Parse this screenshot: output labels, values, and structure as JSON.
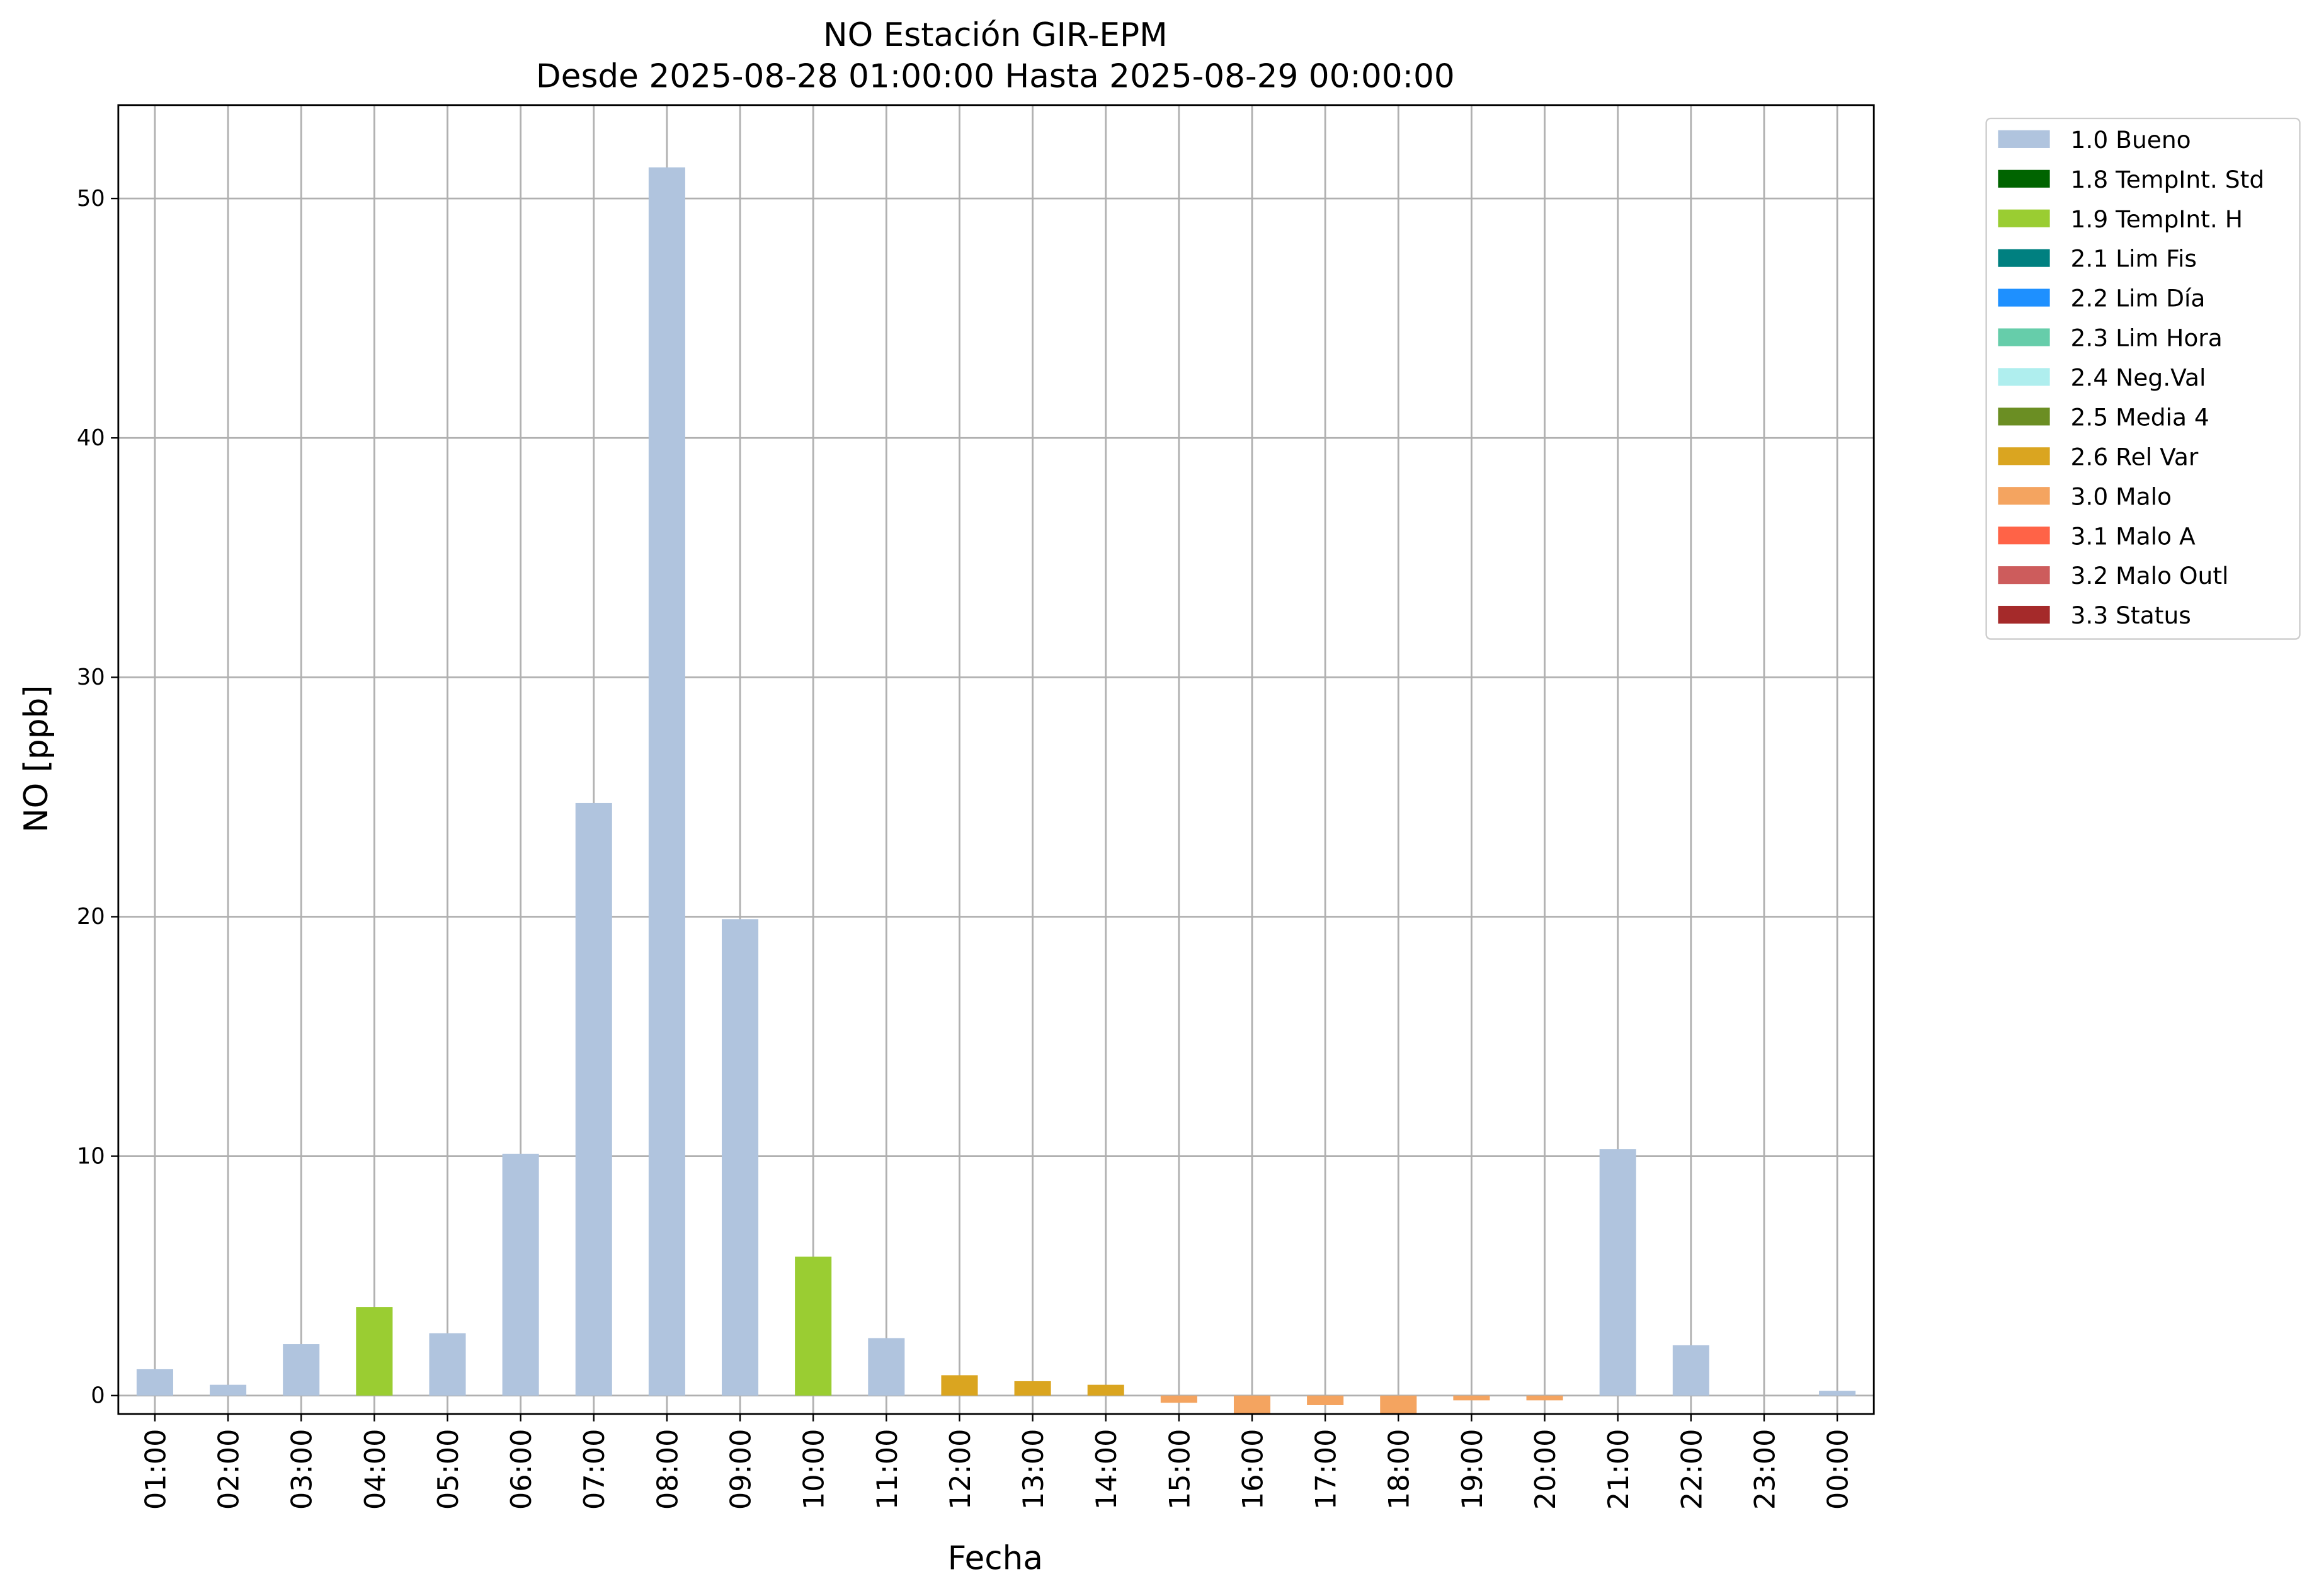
{
  "chart_data": {
    "type": "bar",
    "stacked": true,
    "title": "NO Estación GIR-EPM",
    "subtitle": "Desde 2025-08-28 01:00:00 Hasta 2025-08-29 00:00:00",
    "x_label": "Fecha",
    "y_label": "NO [ppb]",
    "categories": [
      "01:00",
      "02:00",
      "03:00",
      "04:00",
      "05:00",
      "06:00",
      "07:00",
      "08:00",
      "09:00",
      "10:00",
      "11:00",
      "12:00",
      "13:00",
      "14:00",
      "15:00",
      "16:00",
      "17:00",
      "18:00",
      "19:00",
      "20:00",
      "21:00",
      "22:00",
      "23:00",
      "00:00"
    ],
    "ylim": [
      -0.77,
      53.9
    ],
    "yticks": [
      0,
      10,
      20,
      30,
      40,
      50
    ],
    "grid": true,
    "series": [
      {
        "name": "1.0 Bueno",
        "color": "#b0c4de",
        "values": [
          1.1,
          0.45,
          2.15,
          null,
          2.6,
          10.1,
          24.75,
          51.3,
          19.9,
          null,
          2.4,
          null,
          null,
          null,
          null,
          null,
          null,
          null,
          null,
          null,
          10.3,
          2.1,
          null,
          0.2
        ]
      },
      {
        "name": "1.8 TempInt. Std",
        "color": "#006400",
        "values": [
          null,
          null,
          null,
          null,
          null,
          null,
          null,
          null,
          null,
          null,
          null,
          null,
          null,
          null,
          null,
          null,
          null,
          null,
          null,
          null,
          null,
          null,
          null,
          null
        ]
      },
      {
        "name": "1.9 TempInt. H",
        "color": "#9acd32",
        "values": [
          null,
          null,
          null,
          3.7,
          null,
          null,
          null,
          null,
          null,
          5.8,
          null,
          null,
          null,
          null,
          null,
          null,
          null,
          null,
          null,
          null,
          null,
          null,
          null,
          null
        ]
      },
      {
        "name": "2.1 Lim Fis",
        "color": "#008080",
        "values": [
          null,
          null,
          null,
          null,
          null,
          null,
          null,
          null,
          null,
          null,
          null,
          null,
          null,
          null,
          null,
          null,
          null,
          null,
          null,
          null,
          null,
          null,
          null,
          null
        ]
      },
      {
        "name": "2.2 Lim Día",
        "color": "#1e90ff",
        "values": [
          null,
          null,
          null,
          null,
          null,
          null,
          null,
          null,
          null,
          null,
          null,
          null,
          null,
          null,
          null,
          null,
          null,
          null,
          null,
          null,
          null,
          null,
          null,
          null
        ]
      },
      {
        "name": "2.3 Lim Hora",
        "color": "#66cdaa",
        "values": [
          null,
          null,
          null,
          null,
          null,
          null,
          null,
          null,
          null,
          null,
          null,
          null,
          null,
          null,
          null,
          null,
          null,
          null,
          null,
          null,
          null,
          null,
          null,
          null
        ]
      },
      {
        "name": "2.4 Neg.Val",
        "color": "#afeeee",
        "values": [
          null,
          null,
          null,
          null,
          null,
          null,
          null,
          null,
          null,
          null,
          null,
          null,
          null,
          null,
          null,
          null,
          null,
          null,
          null,
          null,
          null,
          null,
          null,
          null
        ]
      },
      {
        "name": "2.5 Media 4",
        "color": "#6b8e23",
        "values": [
          null,
          null,
          null,
          null,
          null,
          null,
          null,
          null,
          null,
          null,
          null,
          null,
          null,
          null,
          null,
          null,
          null,
          null,
          null,
          null,
          null,
          null,
          null,
          null
        ]
      },
      {
        "name": "2.6 Rel Var",
        "color": "#daa520",
        "values": [
          null,
          null,
          null,
          null,
          null,
          null,
          null,
          null,
          null,
          null,
          null,
          0.85,
          0.6,
          0.45,
          null,
          null,
          null,
          null,
          null,
          null,
          null,
          null,
          null,
          null
        ]
      },
      {
        "name": "3.0 Malo",
        "color": "#f4a460",
        "values": [
          null,
          null,
          null,
          null,
          null,
          null,
          null,
          null,
          null,
          null,
          null,
          null,
          null,
          null,
          -0.3,
          -0.75,
          -0.4,
          -0.75,
          -0.2,
          -0.2,
          null,
          null,
          null,
          null
        ]
      },
      {
        "name": "3.1 Malo A",
        "color": "#ff6347",
        "values": [
          null,
          null,
          null,
          null,
          null,
          null,
          null,
          null,
          null,
          null,
          null,
          null,
          null,
          null,
          null,
          null,
          null,
          null,
          null,
          null,
          null,
          null,
          null,
          null
        ]
      },
      {
        "name": "3.2 Malo Outl",
        "color": "#cd5c5c",
        "values": [
          null,
          null,
          null,
          null,
          null,
          null,
          null,
          null,
          null,
          null,
          null,
          null,
          null,
          null,
          null,
          null,
          null,
          null,
          null,
          null,
          null,
          null,
          null,
          null
        ]
      },
      {
        "name": "3.3 Status",
        "color": "#a52a2a",
        "values": [
          null,
          null,
          null,
          null,
          null,
          null,
          null,
          null,
          null,
          null,
          null,
          null,
          null,
          null,
          null,
          null,
          null,
          null,
          null,
          null,
          null,
          null,
          null,
          null
        ]
      }
    ]
  }
}
